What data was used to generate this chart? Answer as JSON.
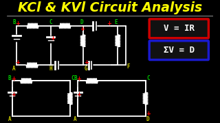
{
  "title": "KCl & KVl Circuit Analysis",
  "title_color": "#FFFF00",
  "bg_color": "#000000",
  "title_fontsize": 13.5,
  "divider_color": "#FFFFFF",
  "formula1_text": "V = IR",
  "formula1_box_color": "#CC0000",
  "formula2_text": "ΣV = D",
  "formula2_box_color": "#1a1aCC",
  "formula_text_color": "#FFFFFF",
  "node_color_green": "#00CC00",
  "node_color_yellow": "#CCCC00",
  "wire_color": "#FFFFFF",
  "plus_color": "#FF0000"
}
